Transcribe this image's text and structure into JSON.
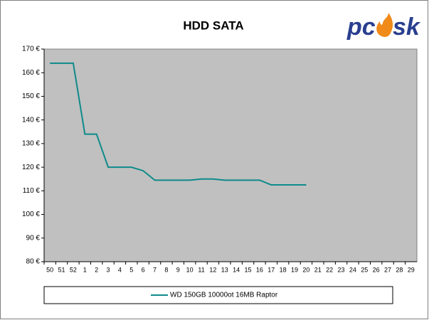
{
  "chart_data": {
    "type": "line",
    "title": "HDD SATA",
    "logo": {
      "left": "pc",
      "right": "sk"
    },
    "categories": [
      "50",
      "51",
      "52",
      "1",
      "2",
      "3",
      "4",
      "5",
      "6",
      "7",
      "8",
      "9",
      "10",
      "11",
      "12",
      "13",
      "14",
      "15",
      "16",
      "17",
      "18",
      "19",
      "20",
      "21",
      "22",
      "23",
      "24",
      "25",
      "26",
      "27",
      "28",
      "29"
    ],
    "series": [
      {
        "name": "WD 150GB 10000ot 16MB Raptor",
        "color": "#0e8a8a",
        "values": [
          164,
          164,
          164,
          134,
          134,
          120,
          120,
          120,
          118.5,
          114.5,
          114.5,
          114.5,
          114.5,
          115,
          115,
          114.5,
          114.5,
          114.5,
          114.5,
          112.5,
          112.5,
          112.5,
          112.5,
          null,
          null,
          null,
          null,
          null,
          null,
          null,
          null,
          null
        ]
      }
    ],
    "ylim": [
      80,
      170
    ],
    "yticks": [
      {
        "value": 80,
        "label": "80 €"
      },
      {
        "value": 90,
        "label": "90 €"
      },
      {
        "value": 100,
        "label": "100 €"
      },
      {
        "value": 110,
        "label": "110 €"
      },
      {
        "value": 120,
        "label": "120 €"
      },
      {
        "value": 130,
        "label": "130 €"
      },
      {
        "value": 140,
        "label": "140 €"
      },
      {
        "value": 150,
        "label": "150 €"
      },
      {
        "value": 160,
        "label": "160 €"
      },
      {
        "value": 170,
        "label": "170 €"
      }
    ],
    "plot_background": "#c0c0c0",
    "legend": "bottom"
  }
}
